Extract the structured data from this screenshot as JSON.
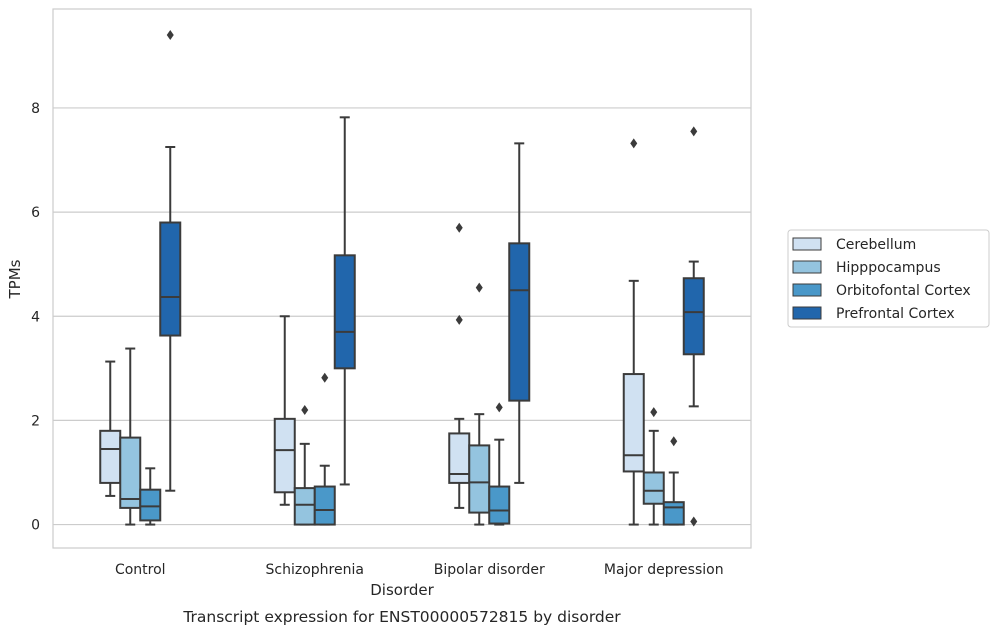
{
  "chart_data": {
    "type": "box",
    "title": "",
    "caption": "Transcript expression for ENST00000572815 by disorder",
    "xlabel": "Disorder",
    "ylabel": "TPMs",
    "ylim": [
      -0.45,
      9.9
    ],
    "yticks": [
      0,
      2,
      4,
      6,
      8
    ],
    "ytick_labels": [
      "0",
      "2",
      "4",
      "6",
      "8"
    ],
    "grid": "horizontal",
    "legend_position": "right",
    "categories": [
      "Control",
      "Schizophrenia",
      "Bipolar disorder",
      "Major depression"
    ],
    "series": [
      {
        "name": "Cerebellum",
        "color": "#d0e1f2",
        "boxes": [
          {
            "whisker_low": 0.55,
            "q1": 0.8,
            "median": 1.45,
            "q3": 1.8,
            "whisker_high": 3.13,
            "outliers": []
          },
          {
            "whisker_low": 0.38,
            "q1": 0.62,
            "median": 1.43,
            "q3": 2.03,
            "whisker_high": 4.0,
            "outliers": []
          },
          {
            "whisker_low": 0.32,
            "q1": 0.8,
            "median": 0.97,
            "q3": 1.75,
            "whisker_high": 2.03,
            "outliers": [
              3.93,
              5.7
            ]
          },
          {
            "whisker_low": 0.0,
            "q1": 1.02,
            "median": 1.33,
            "q3": 2.89,
            "whisker_high": 4.68,
            "outliers": [
              7.32
            ]
          }
        ]
      },
      {
        "name": "Hipppocampus",
        "color": "#94c4df",
        "boxes": [
          {
            "whisker_low": 0.0,
            "q1": 0.32,
            "median": 0.49,
            "q3": 1.67,
            "whisker_high": 3.38,
            "outliers": []
          },
          {
            "whisker_low": 0.0,
            "q1": 0.0,
            "median": 0.38,
            "q3": 0.7,
            "whisker_high": 1.55,
            "outliers": [
              2.2
            ]
          },
          {
            "whisker_low": 0.0,
            "q1": 0.23,
            "median": 0.81,
            "q3": 1.52,
            "whisker_high": 2.12,
            "outliers": [
              4.55
            ]
          },
          {
            "whisker_low": 0.0,
            "q1": 0.4,
            "median": 0.65,
            "q3": 1.0,
            "whisker_high": 1.8,
            "outliers": [
              2.16
            ]
          }
        ]
      },
      {
        "name": "Orbitofontal Cortex",
        "color": "#4a98c9",
        "boxes": [
          {
            "whisker_low": 0.0,
            "q1": 0.08,
            "median": 0.35,
            "q3": 0.67,
            "whisker_high": 1.08,
            "outliers": []
          },
          {
            "whisker_low": 0.0,
            "q1": 0.0,
            "median": 0.28,
            "q3": 0.73,
            "whisker_high": 1.13,
            "outliers": [
              2.82
            ]
          },
          {
            "whisker_low": 0.0,
            "q1": 0.02,
            "median": 0.27,
            "q3": 0.73,
            "whisker_high": 1.63,
            "outliers": [
              2.25
            ]
          },
          {
            "whisker_low": 0.0,
            "q1": 0.0,
            "median": 0.33,
            "q3": 0.43,
            "whisker_high": 1.0,
            "outliers": [
              1.6
            ]
          }
        ]
      },
      {
        "name": "Prefrontal Cortex",
        "color": "#2166ac",
        "boxes": [
          {
            "whisker_low": 0.65,
            "q1": 3.63,
            "median": 4.37,
            "q3": 5.8,
            "whisker_high": 7.25,
            "outliers": [
              9.4
            ]
          },
          {
            "whisker_low": 0.77,
            "q1": 3.0,
            "median": 3.7,
            "q3": 5.17,
            "whisker_high": 7.82,
            "outliers": []
          },
          {
            "whisker_low": 0.8,
            "q1": 2.38,
            "median": 4.5,
            "q3": 5.4,
            "whisker_high": 7.32,
            "outliers": []
          },
          {
            "whisker_low": 2.27,
            "q1": 3.27,
            "median": 4.08,
            "q3": 4.73,
            "whisker_high": 5.05,
            "outliers": [
              0.06,
              7.55
            ]
          }
        ]
      }
    ]
  }
}
